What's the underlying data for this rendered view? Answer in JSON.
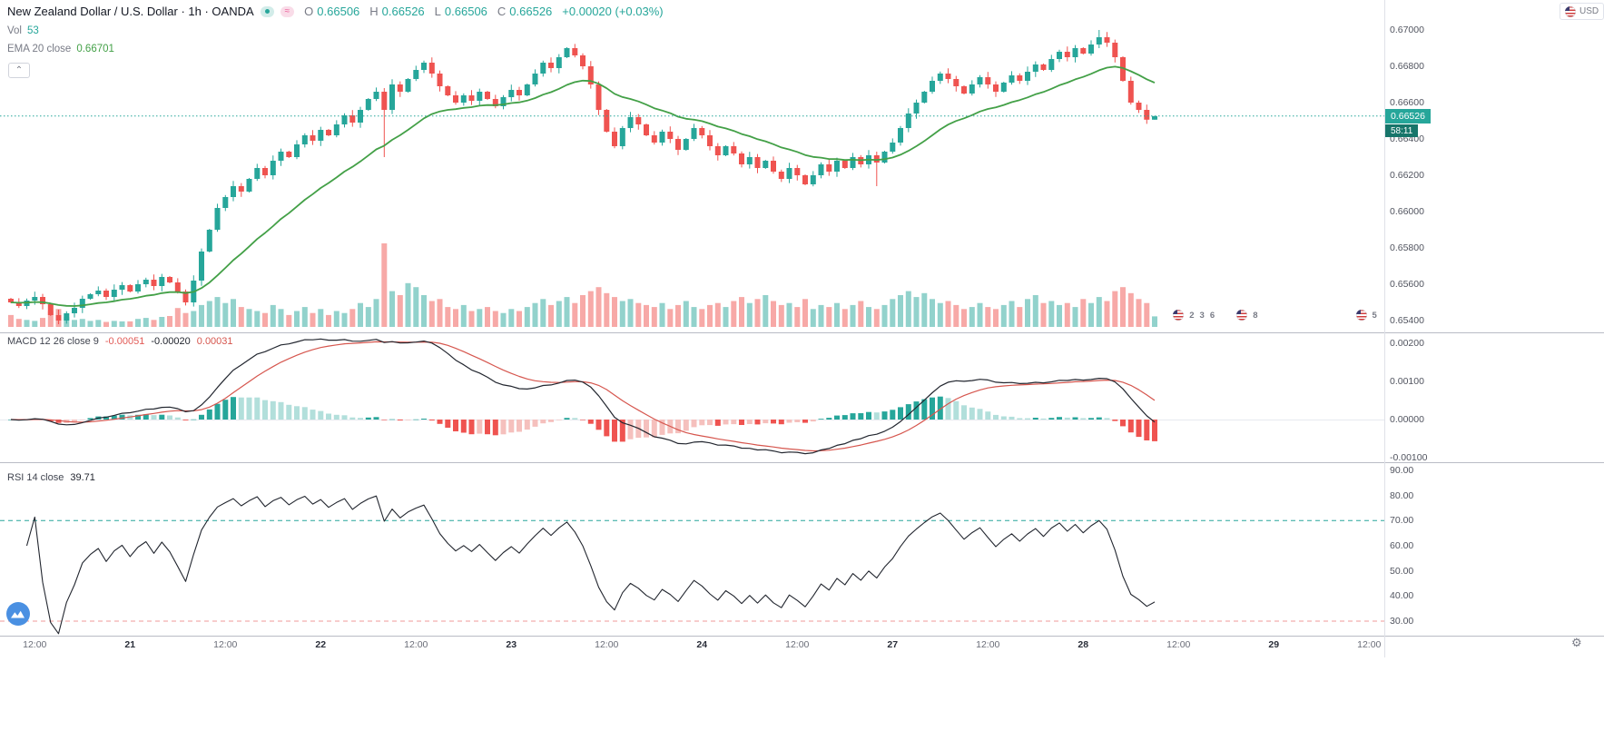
{
  "legend": {
    "title": "New Zealand Dollar / U.S. Dollar · 1h · OANDA",
    "ohlc": {
      "o": "O",
      "ov": "0.66506",
      "h": "H",
      "hv": "0.66526",
      "l": "L",
      "lv": "0.66506",
      "c": "C",
      "cv": "0.66526",
      "chg": "+0.00020 (+0.03%)"
    },
    "vol_label": "Vol",
    "vol_value": "53",
    "ema_label": "EMA 20 close",
    "ema_value": "0.66701"
  },
  "macd_legend": {
    "label": "MACD 12 26 close 9",
    "hist": "-0.00051",
    "macd": "-0.00020",
    "signal": "0.00031"
  },
  "rsi_legend": {
    "label": "RSI 14 close",
    "value": "39.71"
  },
  "badge": {
    "price": "0.66526",
    "countdown": "58:11"
  },
  "currency": "USD",
  "icons": {
    "gear": "⚙",
    "collapse": "⌃",
    "approx": "≈"
  },
  "scales": {
    "price": [
      "0.67000",
      "0.66800",
      "0.66600",
      "0.66400",
      "0.66200",
      "0.66000",
      "0.65800",
      "0.65600",
      "0.65400"
    ],
    "macd": [
      "0.00200",
      "0.00100",
      "0.00000",
      "-0.00100"
    ],
    "rsi": [
      "90.00",
      "80.00",
      "70.00",
      "60.00",
      "50.00",
      "40.00",
      "30.00"
    ]
  },
  "time": [
    {
      "t": "12:00",
      "i": 3
    },
    {
      "t": "21",
      "i": 15
    },
    {
      "t": "12:00",
      "i": 27
    },
    {
      "t": "22",
      "i": 39
    },
    {
      "t": "12:00",
      "i": 51
    },
    {
      "t": "23",
      "i": 63
    },
    {
      "t": "12:00",
      "i": 75
    },
    {
      "t": "24",
      "i": 87
    },
    {
      "t": "12:00",
      "i": 99
    },
    {
      "t": "27",
      "i": 111
    },
    {
      "t": "12:00",
      "i": 123
    },
    {
      "t": "28",
      "i": 135
    },
    {
      "t": "12:00",
      "i": 147
    },
    {
      "t": "29",
      "i": 159
    },
    {
      "t": "12:00",
      "i": 171
    }
  ],
  "events": [
    {
      "i": 147,
      "counts": [
        "2",
        "3",
        "6"
      ]
    },
    {
      "i": 155,
      "counts": [
        "8"
      ]
    },
    {
      "i": 170,
      "counts": [
        "5"
      ]
    }
  ],
  "chart_data": {
    "type": "candlestick",
    "title": "New Zealand Dollar / U.S. Dollar · 1h · OANDA",
    "panes": [
      "price+volume+ema20",
      "macd(12,26,close,9)",
      "rsi(14,close)"
    ],
    "price_axis": {
      "min": 0.654,
      "max": 0.67,
      "tick": 0.002
    },
    "x_axis_labels": [
      "12:00",
      "21",
      "12:00",
      "22",
      "12:00",
      "23",
      "12:00",
      "24",
      "12:00",
      "27",
      "12:00",
      "28",
      "12:00",
      "29",
      "12:00"
    ],
    "first_open": 0.6552,
    "closes": [
      0.655,
      0.6548,
      0.6551,
      0.6553,
      0.6549,
      0.6543,
      0.654,
      0.6544,
      0.6547,
      0.6552,
      0.65545,
      0.65565,
      0.6553,
      0.6557,
      0.65595,
      0.6556,
      0.656,
      0.65625,
      0.6559,
      0.6564,
      0.6561,
      0.6556,
      0.655,
      0.6562,
      0.6578,
      0.659,
      0.6602,
      0.6608,
      0.6614,
      0.6611,
      0.6618,
      0.6624,
      0.662,
      0.6628,
      0.6633,
      0.663,
      0.6637,
      0.6642,
      0.6639,
      0.6645,
      0.6642,
      0.6648,
      0.6653,
      0.6649,
      0.6656,
      0.6662,
      0.6666,
      0.6656,
      0.667,
      0.6666,
      0.6673,
      0.6678,
      0.6682,
      0.6676,
      0.6669,
      0.6664,
      0.666,
      0.6664,
      0.6661,
      0.6666,
      0.6662,
      0.6658,
      0.6663,
      0.6667,
      0.6664,
      0.667,
      0.6676,
      0.6682,
      0.6679,
      0.6685,
      0.669,
      0.6686,
      0.668,
      0.667,
      0.6656,
      0.6644,
      0.6636,
      0.6646,
      0.6652,
      0.6648,
      0.6642,
      0.6638,
      0.6644,
      0.664,
      0.6634,
      0.664,
      0.6646,
      0.6642,
      0.6636,
      0.6631,
      0.6636,
      0.6632,
      0.6626,
      0.663,
      0.6624,
      0.6628,
      0.6622,
      0.6618,
      0.6624,
      0.662,
      0.6615,
      0.662,
      0.6626,
      0.6622,
      0.6628,
      0.6624,
      0.663,
      0.6626,
      0.6631,
      0.6627,
      0.6633,
      0.6638,
      0.6646,
      0.6654,
      0.666,
      0.6666,
      0.6672,
      0.6676,
      0.6673,
      0.6669,
      0.6665,
      0.667,
      0.6674,
      0.667,
      0.6666,
      0.6671,
      0.6675,
      0.6672,
      0.6677,
      0.6681,
      0.6678,
      0.6684,
      0.6688,
      0.6685,
      0.669,
      0.6687,
      0.6692,
      0.6696,
      0.6693,
      0.6685,
      0.6672,
      0.666,
      0.6656,
      0.66506,
      0.66526
    ],
    "volumes": [
      60,
      40,
      35,
      30,
      45,
      80,
      90,
      50,
      35,
      40,
      30,
      35,
      25,
      30,
      28,
      28,
      40,
      45,
      35,
      50,
      55,
      95,
      70,
      80,
      110,
      130,
      150,
      120,
      140,
      100,
      90,
      80,
      70,
      110,
      90,
      60,
      80,
      100,
      70,
      90,
      60,
      80,
      70,
      90,
      120,
      100,
      140,
      420,
      180,
      160,
      220,
      200,
      160,
      130,
      140,
      100,
      90,
      110,
      80,
      90,
      100,
      80,
      70,
      90,
      80,
      100,
      120,
      140,
      110,
      130,
      150,
      120,
      160,
      180,
      200,
      170,
      150,
      130,
      140,
      120,
      110,
      100,
      120,
      90,
      110,
      130,
      100,
      90,
      110,
      120,
      100,
      130,
      150,
      120,
      140,
      160,
      130,
      110,
      120,
      100,
      140,
      90,
      110,
      100,
      120,
      90,
      110,
      130,
      100,
      90,
      110,
      140,
      160,
      180,
      150,
      170,
      140,
      120,
      130,
      110,
      90,
      100,
      120,
      100,
      90,
      110,
      130,
      100,
      140,
      160,
      120,
      130,
      110,
      120,
      100,
      140,
      120,
      150,
      130,
      180,
      200,
      170,
      140,
      120,
      53
    ],
    "wick_overrides": {
      "6": [
        0.6546,
        0.6538
      ],
      "47": [
        0.6668,
        0.663
      ],
      "109": [
        0.6633,
        0.6614
      ],
      "137": [
        0.67,
        0.669
      ],
      "144": [
        0.66526,
        0.66506
      ]
    },
    "indicators": {
      "ema_period": 20,
      "ema_last": 0.66701,
      "macd_params": [
        12,
        26,
        9
      ],
      "macd_last": {
        "hist": -0.00051,
        "macd": -0.0002,
        "signal": 0.00031
      },
      "rsi_period": 14,
      "rsi_last": 39.71,
      "rsi_bands": [
        70,
        30
      ]
    },
    "last_candle": {
      "o": 0.66506,
      "h": 0.66526,
      "l": 0.66506,
      "c": 0.66526,
      "change": "+0.00020 (+0.03%)",
      "volume": 53
    },
    "colors": {
      "up": "#26a69a",
      "down": "#ef5350",
      "vol_up": "rgba(38,166,154,0.5)",
      "vol_down": "rgba(239,83,80,0.5)",
      "ema": "#43a047",
      "macd_line": "#22262f",
      "signal_line": "#d6564e",
      "hist_pos": "#26a69a",
      "hist_pos_weak": "#b2dfdb",
      "hist_neg": "#ef5350",
      "hist_neg_weak": "#f5c0bd",
      "rsi_line": "#22262f",
      "rsi_band_upper": "#26a69a",
      "rsi_band_lower": "#ef9a9a",
      "price_line": "#26a69a",
      "badge_bg": "#26a69a",
      "countdown_bg": "#17756a"
    }
  }
}
